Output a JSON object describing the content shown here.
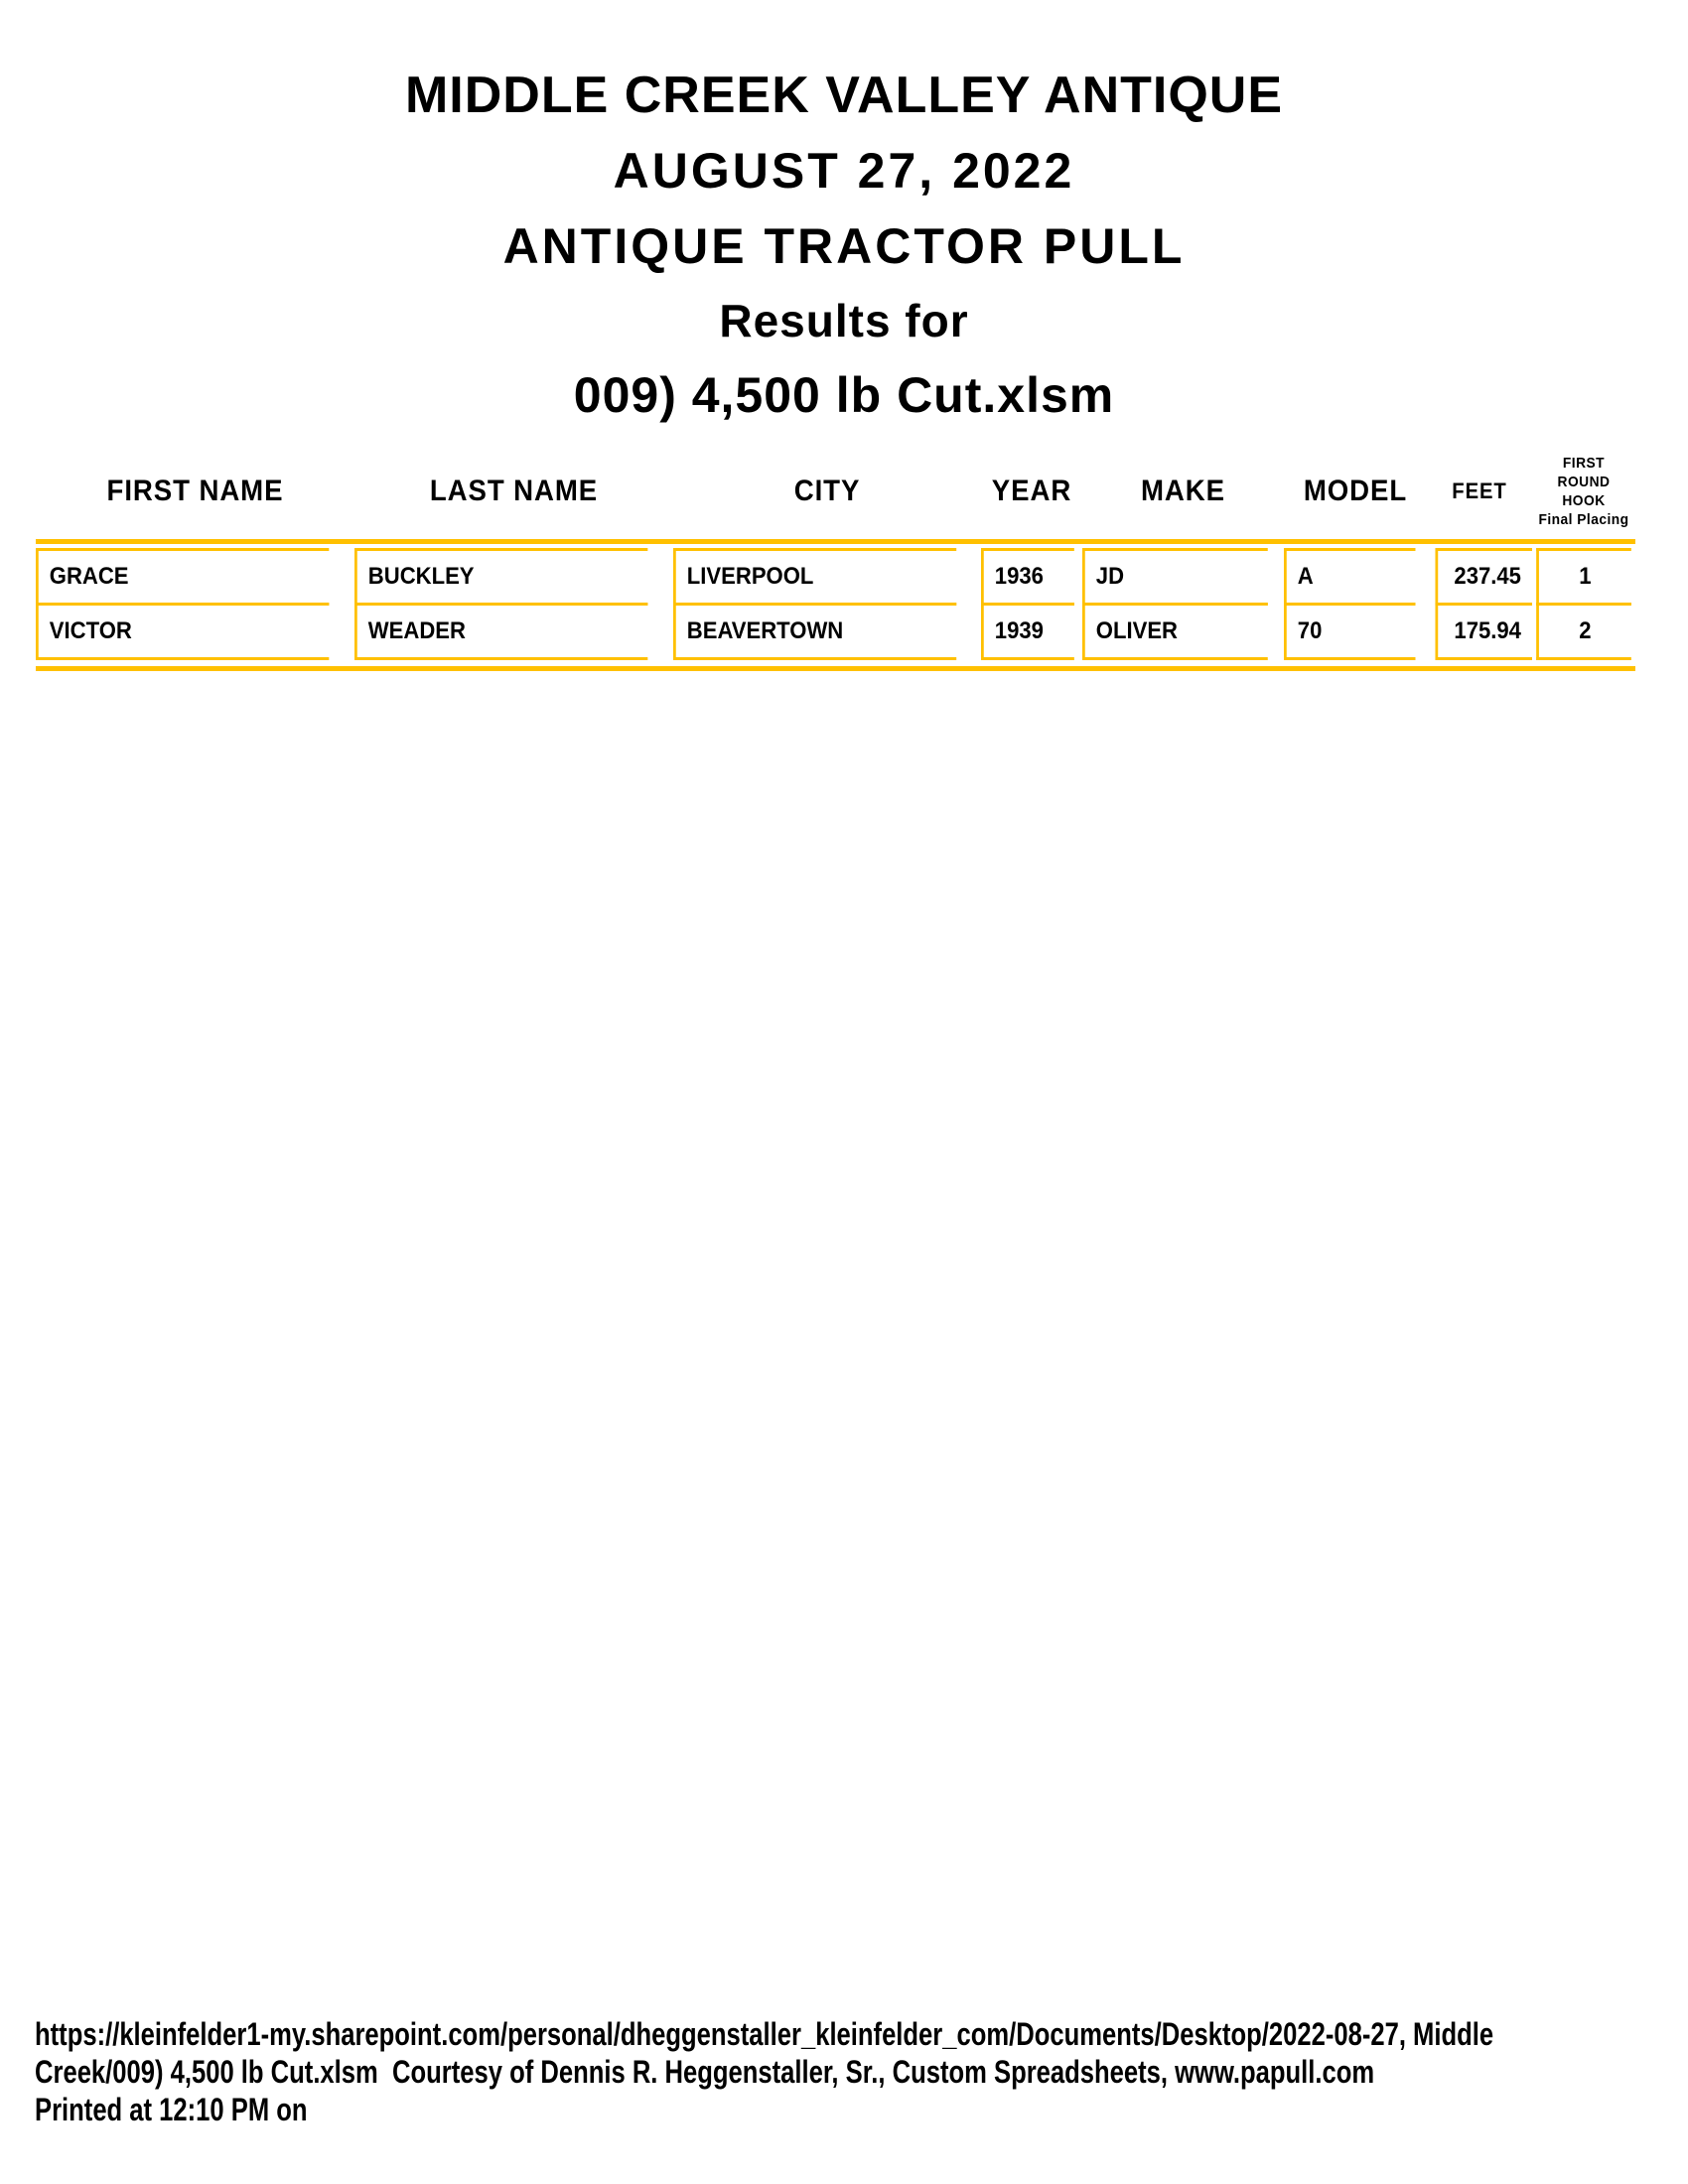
{
  "page": {
    "title_lines": [
      "MIDDLE CREEK VALLEY ANTIQUE",
      "AUGUST 27, 2022",
      "ANTIQUE TRACTOR PULL",
      "Results for",
      "009) 4,500 lb Cut.xlsm"
    ]
  },
  "table": {
    "columns": [
      {
        "key": "first_name",
        "label": "FIRST NAME"
      },
      {
        "key": "last_name",
        "label": "LAST NAME"
      },
      {
        "key": "city",
        "label": "CITY"
      },
      {
        "key": "year",
        "label": "YEAR"
      },
      {
        "key": "make",
        "label": "MAKE"
      },
      {
        "key": "model",
        "label": "MODEL"
      },
      {
        "key": "feet",
        "label": "FEET"
      },
      {
        "key": "hook",
        "label_lines": [
          "FIRST ROUND",
          "HOOK",
          "Final Placing"
        ]
      }
    ],
    "rows": [
      [
        "GRACE",
        "BUCKLEY",
        "LIVERPOOL",
        "1936",
        "JD",
        "A",
        "237.45",
        "1"
      ],
      [
        "VICTOR",
        "WEADER",
        "BEAVERTOWN",
        "1939",
        "OLIVER",
        "70",
        "175.94",
        "2"
      ]
    ]
  },
  "footer": {
    "lines": [
      "https://kleinfelder1-my.sharepoint.com/personal/dheggenstaller_kleinfelder_com/Documents/Desktop/2022-08-27, Middle",
      "Creek/009) 4,500 lb Cut.xlsm  Courtesy of Dennis R. Heggenstaller, Sr., Custom Spreadsheets, www.papull.com",
      "Printed at 12:10 PM on"
    ]
  },
  "colors": {
    "table_border": "#FFC000",
    "text": "#000000",
    "background": "#FFFFFF"
  }
}
